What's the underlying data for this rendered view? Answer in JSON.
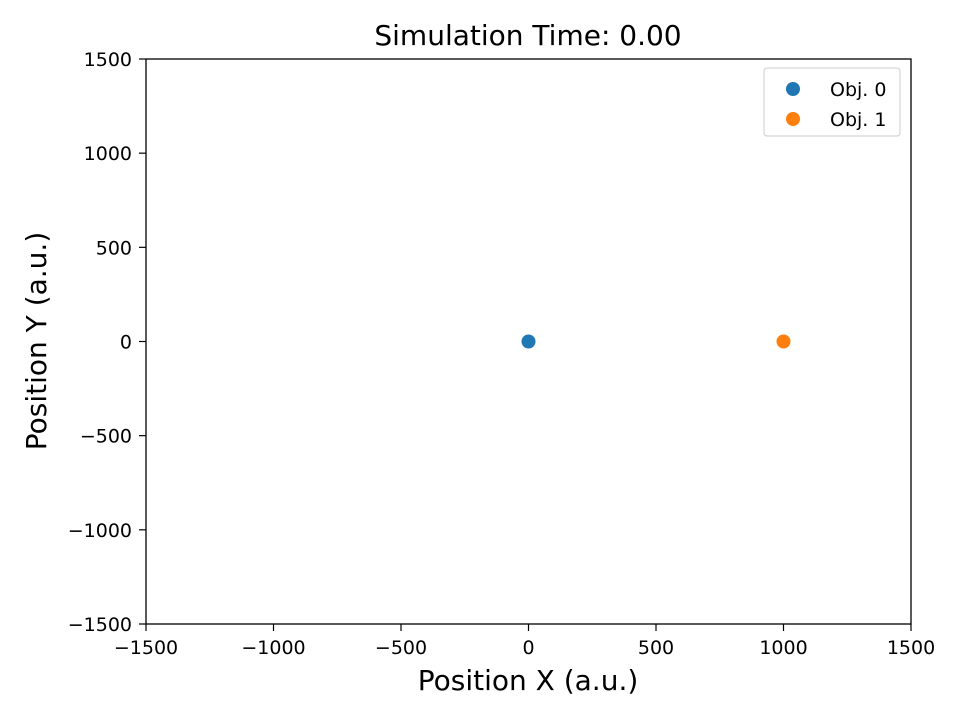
{
  "chart_data": {
    "type": "scatter",
    "title": "Simulation Time: 0.00",
    "xlabel": "Position X (a.u.)",
    "ylabel": "Position Y (a.u.)",
    "xlim": [
      -1500,
      1500
    ],
    "ylim": [
      -1500,
      1500
    ],
    "xticks": [
      -1500,
      -1000,
      -500,
      0,
      500,
      1000,
      1500
    ],
    "yticks": [
      -1500,
      -1000,
      -500,
      0,
      500,
      1000,
      1500
    ],
    "xtick_labels": [
      "−1500",
      "−1000",
      "−500",
      "0",
      "500",
      "1000",
      "1500"
    ],
    "ytick_labels": [
      "−1500",
      "−1000",
      "−500",
      "0",
      "500",
      "1000",
      "1500"
    ],
    "grid": false,
    "legend_position": "top-right",
    "series": [
      {
        "name": "Obj. 0",
        "color": "#1f77b4",
        "points": [
          {
            "x": 0,
            "y": 0
          }
        ]
      },
      {
        "name": "Obj. 1",
        "color": "#ff7f0e",
        "points": [
          {
            "x": 1000,
            "y": 0
          }
        ]
      }
    ]
  }
}
